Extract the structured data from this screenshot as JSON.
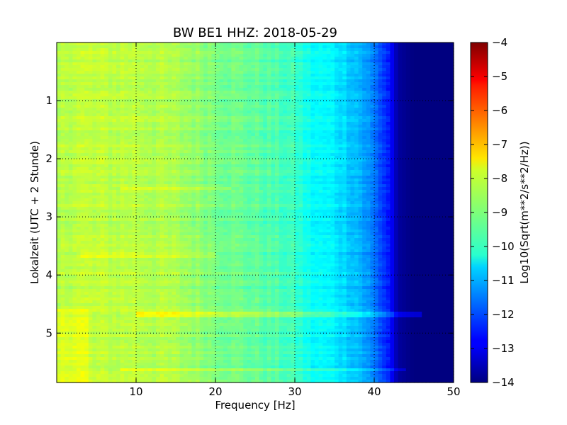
{
  "chart_data": {
    "type": "heatmap",
    "title": "BW BE1 HHZ: 2018-05-29",
    "xlabel": "Frequency [Hz]",
    "ylabel": "Lokalzeit (UTC + 2 Stunde)",
    "xlim": [
      0,
      50
    ],
    "ylim": [
      5.85,
      0.0
    ],
    "x_ticks": [
      10,
      20,
      30,
      40,
      50
    ],
    "y_ticks": [
      1,
      2,
      3,
      4,
      5
    ],
    "grid": true,
    "colormap": "jet",
    "colorbar": {
      "label": "Log10(Sqrt(m**2/s**2/Hz))",
      "vmin": -14,
      "vmax": -4,
      "ticks": [
        -4,
        -5,
        -6,
        -7,
        -8,
        -9,
        -10,
        -11,
        -12,
        -13,
        -14
      ]
    },
    "value_profile_by_frequency": {
      "frequency_hz": [
        0,
        2,
        5,
        10,
        15,
        20,
        25,
        30,
        32,
        35,
        38,
        40,
        42,
        43,
        45,
        50
      ],
      "log10_amplitude": [
        -8.6,
        -8.3,
        -8.4,
        -8.4,
        -8.6,
        -9.0,
        -9.3,
        -9.7,
        -10.2,
        -10.4,
        -10.9,
        -11.6,
        -12.6,
        -13.7,
        -14.0,
        -14.0
      ]
    },
    "bright_lines": [
      {
        "time_h": 4.67,
        "freq_range_hz": [
          10,
          46
        ],
        "delta": 0.8
      },
      {
        "time_h": 5.62,
        "freq_range_hz": [
          8,
          44
        ],
        "delta": 0.6
      },
      {
        "time_h": 2.5,
        "freq_range_hz": [
          8,
          22
        ],
        "delta": 0.4
      },
      {
        "time_h": 3.65,
        "freq_range_hz": [
          3,
          20
        ],
        "delta": 0.4
      }
    ]
  }
}
